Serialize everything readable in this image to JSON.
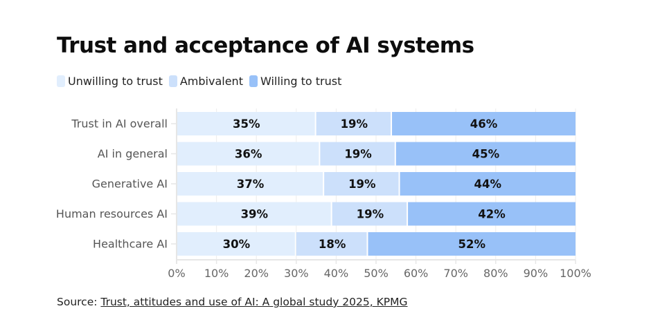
{
  "chart_data": {
    "type": "bar",
    "orientation": "horizontal",
    "stacked": true,
    "title": "Trust and acceptance of AI systems",
    "categories": [
      "Trust in AI overall",
      "AI in general",
      "Generative AI",
      "Human resources AI",
      "Healthcare AI"
    ],
    "series": [
      {
        "name": "Unwilling to trust",
        "color": "#e1eefd",
        "values": [
          35,
          36,
          37,
          39,
          30
        ]
      },
      {
        "name": "Ambivalent",
        "color": "#cce0fb",
        "values": [
          19,
          19,
          19,
          19,
          18
        ]
      },
      {
        "name": "Willing to trust",
        "color": "#98c1f8",
        "values": [
          46,
          45,
          44,
          42,
          52
        ]
      }
    ],
    "value_suffix": "%",
    "xlabel": "",
    "ylabel": "",
    "xlim": [
      0,
      100
    ],
    "xticks": [
      "0%",
      "10%",
      "20%",
      "30%",
      "40%",
      "50%",
      "60%",
      "70%",
      "80%",
      "90%",
      "100%"
    ],
    "legend_position": "top-left",
    "grid": true
  },
  "source": {
    "prefix": "Source: ",
    "link_text": "Trust, attitudes and use of AI: A global study 2025, KPMG"
  }
}
